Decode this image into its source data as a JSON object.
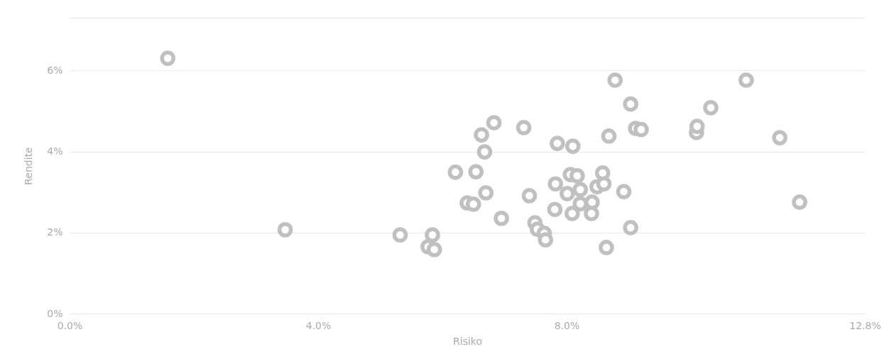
{
  "chart_data": {
    "type": "scatter",
    "xlabel": "Risiko",
    "ylabel": "Rendite",
    "xlim": [
      0,
      12.8
    ],
    "ylim": [
      0,
      7.3
    ],
    "xticks": [
      {
        "value": 0,
        "label": "0.0%"
      },
      {
        "value": 4,
        "label": "4.0%"
      },
      {
        "value": 8,
        "label": "8.0%"
      },
      {
        "value": 12.8,
        "label": "12.8%"
      }
    ],
    "yticks": [
      {
        "value": 0,
        "label": "0%"
      },
      {
        "value": 2,
        "label": "2%"
      },
      {
        "value": 4,
        "label": "4%"
      },
      {
        "value": 6,
        "label": "6%"
      },
      {
        "value": 7.3,
        "label": null
      }
    ],
    "grid": "y",
    "marker": "circle",
    "legend": false,
    "series": [
      {
        "color": "#c0c0c0",
        "x": [
          1.58,
          3.47,
          5.32,
          5.77,
          5.84,
          5.87,
          6.21,
          6.4,
          6.5,
          6.54,
          6.63,
          6.68,
          6.7,
          6.83,
          6.95,
          7.31,
          7.4,
          7.49,
          7.53,
          7.64,
          7.66,
          7.81,
          7.82,
          7.85,
          8.01,
          8.06,
          8.09,
          8.1,
          8.17,
          8.22,
          8.22,
          8.4,
          8.41,
          8.49,
          8.58,
          8.6,
          8.64,
          8.68,
          8.78,
          8.92,
          9.03,
          9.03,
          9.11,
          9.2,
          10.09,
          10.1,
          10.32,
          10.89,
          11.43,
          11.75
        ],
        "values": [
          6.3,
          2.07,
          1.94,
          1.65,
          1.94,
          1.58,
          3.49,
          2.73,
          2.7,
          3.5,
          4.41,
          3.99,
          2.98,
          4.71,
          2.35,
          4.59,
          2.91,
          2.24,
          2.08,
          1.98,
          1.82,
          2.57,
          3.2,
          4.2,
          2.96,
          3.43,
          2.47,
          4.13,
          3.4,
          3.06,
          2.71,
          2.47,
          2.75,
          3.13,
          3.47,
          3.2,
          1.63,
          4.38,
          5.76,
          3.01,
          5.17,
          2.12,
          4.57,
          4.54,
          4.47,
          4.62,
          5.08,
          5.76,
          4.34,
          2.75
        ]
      }
    ]
  }
}
